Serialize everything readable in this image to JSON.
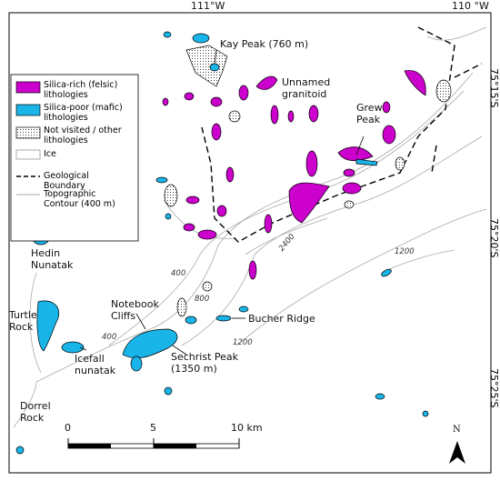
{
  "axes": {
    "top": [
      "111°W",
      "110 °W"
    ],
    "right": [
      "75°15'S",
      "75°20'S",
      "75°25'S"
    ]
  },
  "legend": [
    "Silica-rich (felsic) lithologies",
    "Silica-poor (mafic) lithologies",
    "Not visited / other lithologies",
    "Ice",
    "Geological Boundary",
    "Topographic Contour (400 m)"
  ],
  "places": [
    "Kay Peak (760 m)",
    "Unnamed granitoid",
    "Grew Peak",
    "Hedin Nunatak",
    "Turtle Rock",
    "Notebook Cliffs",
    "Bucher Ridge",
    "Icefall nunatak",
    "Sechrist Peak (1350 m)",
    "Dorrel Rock"
  ],
  "contours": [
    "400",
    "800",
    "1200",
    "2400",
    "400",
    "1200"
  ],
  "scale": [
    "0",
    "5",
    "10 km"
  ],
  "north": "N"
}
